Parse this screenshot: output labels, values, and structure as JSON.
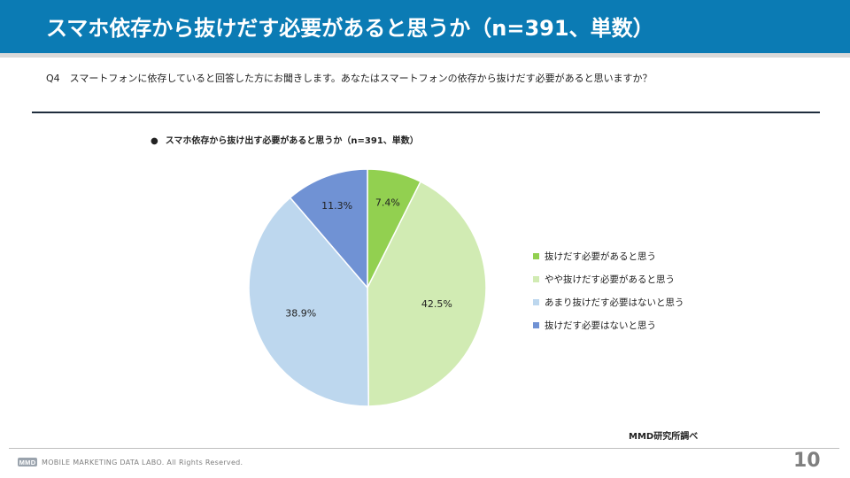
{
  "header": {
    "title": "スマホ依存から抜けだす必要があると思うか（n=391、単数）"
  },
  "question": "Q4　スマートフォンに依存していると回答した方にお聞きします。あなたはスマートフォンの依存から抜けだす必要があると思いますか？",
  "chart_bullet": "●",
  "chart_data": {
    "type": "pie",
    "title": "スマホ依存から抜け出す必要があると思うか（n=391、単数）",
    "slices": [
      {
        "label": "抜けだす必要があると思う",
        "value": 7.4,
        "display": "7.4%",
        "color": "#92d050"
      },
      {
        "label": "やや抜けだす必要があると思う",
        "value": 42.5,
        "display": "42.5%",
        "color": "#d1ebb3"
      },
      {
        "label": "あまり抜けだす必要はないと思う",
        "value": 38.9,
        "display": "38.9%",
        "color": "#bdd7ee"
      },
      {
        "label": "抜けだす必要はないと思う",
        "value": 11.3,
        "display": "11.3%",
        "color": "#7092d4"
      }
    ],
    "legend_position": "right"
  },
  "source": "MMD研究所調べ",
  "footer": {
    "company": "MOBILE MARKETING DATA LABO.  All Rights Reserved.",
    "logo_text": "MMD"
  },
  "page_number": "10"
}
